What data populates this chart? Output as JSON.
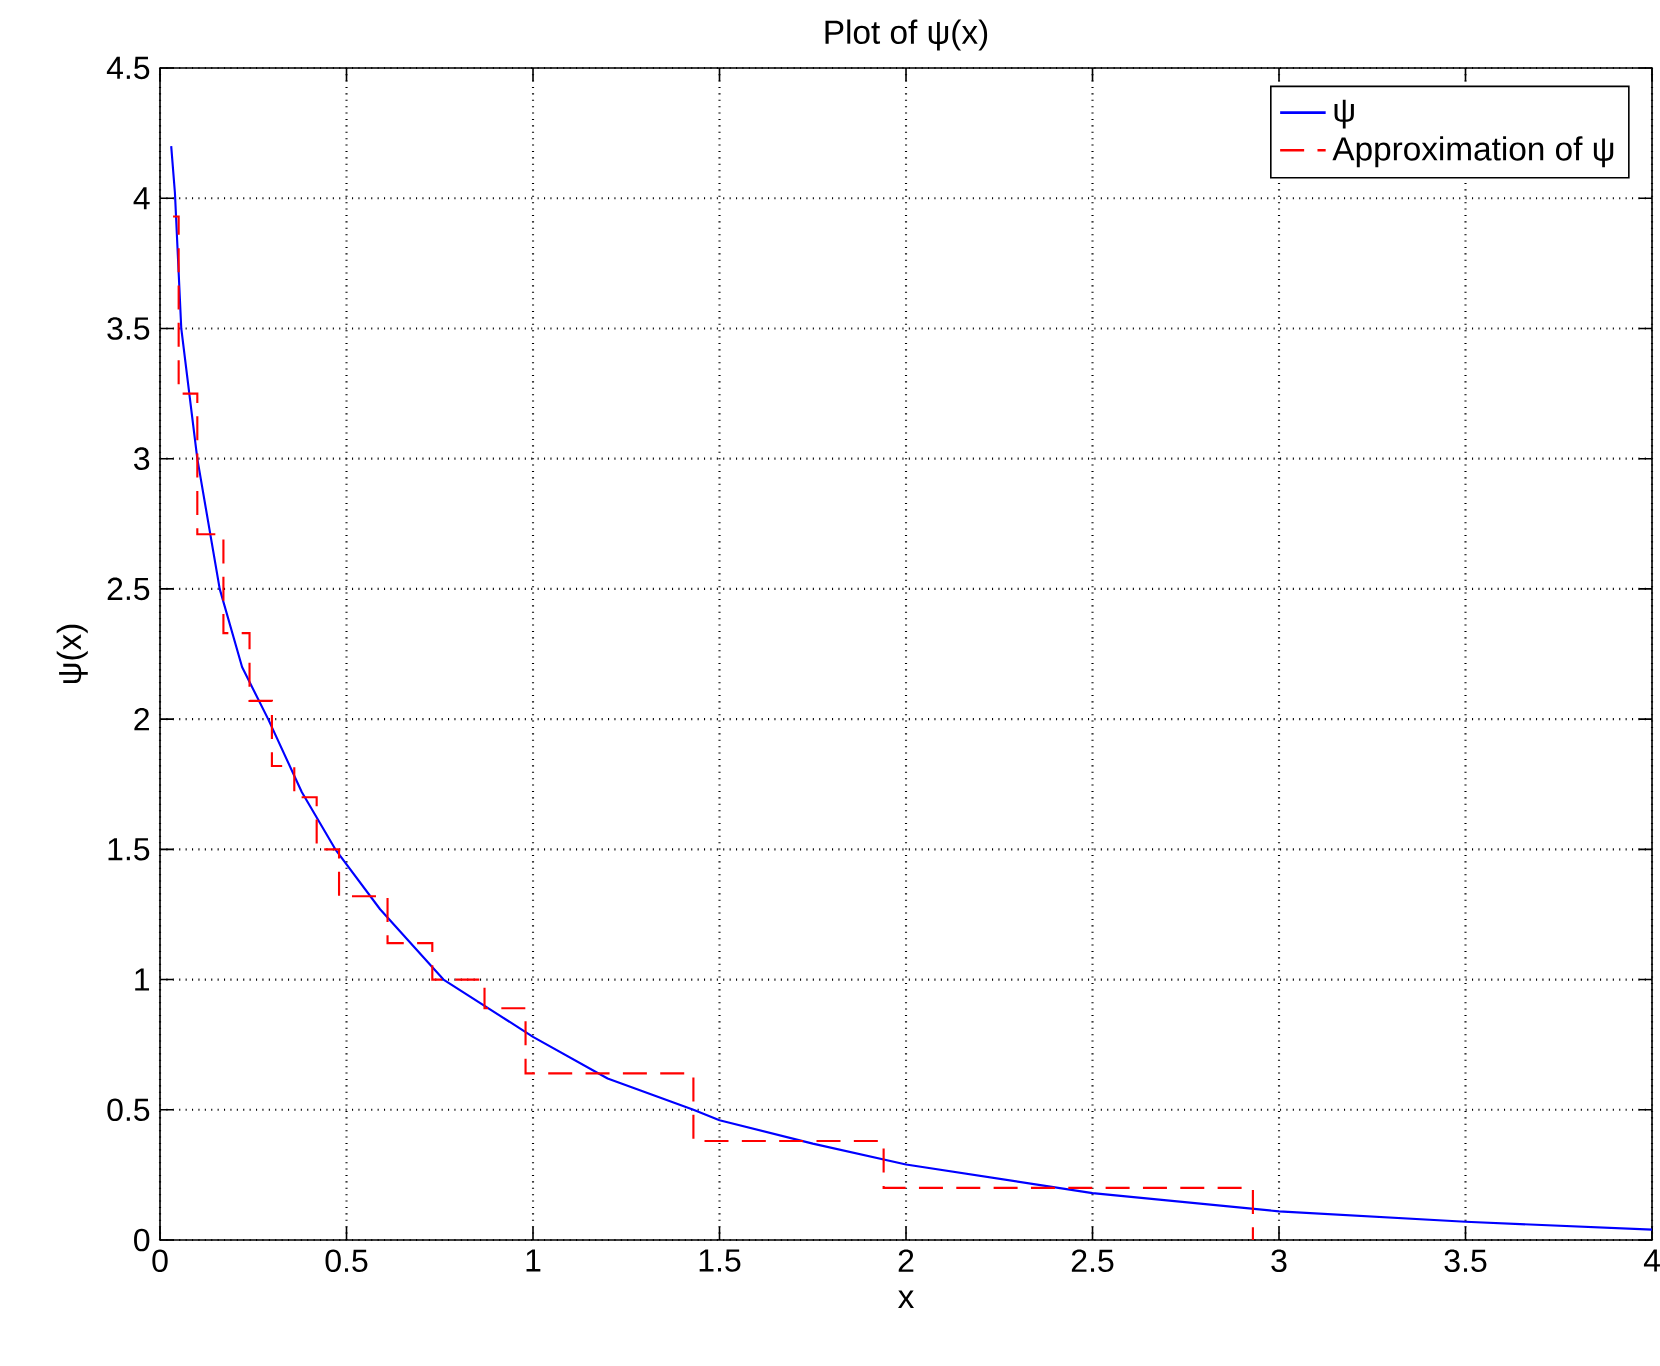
{
  "chart_data": {
    "type": "line",
    "title": "Plot of ψ(x)",
    "xlabel": "x",
    "ylabel": "ψ(x)",
    "xlim": [
      0,
      4
    ],
    "ylim": [
      0,
      4.5
    ],
    "xticks": [
      0,
      0.5,
      1,
      1.5,
      2,
      2.5,
      3,
      3.5,
      4
    ],
    "yticks": [
      0,
      0.5,
      1,
      1.5,
      2,
      2.5,
      3,
      3.5,
      4,
      4.5
    ],
    "grid": true,
    "legend": "top right",
    "series": [
      {
        "name": "ψ",
        "color": "#0000ff",
        "line_style": "solid",
        "x": [
          0.03,
          0.04,
          0.057,
          0.1,
          0.16,
          0.22,
          0.29,
          0.38,
          0.47,
          0.59,
          0.76,
          1.0,
          1.2,
          1.43,
          1.5,
          1.75,
          2.0,
          2.5,
          3.0,
          3.5,
          4.0
        ],
        "values": [
          4.2,
          4.02,
          3.5,
          3.0,
          2.5,
          2.2,
          2.0,
          1.72,
          1.5,
          1.27,
          1.0,
          0.78,
          0.62,
          0.5,
          0.46,
          0.37,
          0.29,
          0.18,
          0.11,
          0.07,
          0.04
        ]
      },
      {
        "name": "Approximation of ψ",
        "type": "step",
        "color": "#ff0000",
        "line_style": "dashed",
        "x": [
          0.035,
          0.05,
          0.1,
          0.17,
          0.24,
          0.3,
          0.36,
          0.42,
          0.48,
          0.61,
          0.73,
          0.87,
          0.98,
          1.43,
          1.94,
          2.93
        ],
        "values": [
          3.93,
          3.25,
          2.71,
          2.33,
          2.07,
          1.82,
          1.7,
          1.5,
          1.32,
          1.14,
          1.0,
          0.89,
          0.64,
          0.38,
          0.2,
          0
        ]
      }
    ]
  }
}
